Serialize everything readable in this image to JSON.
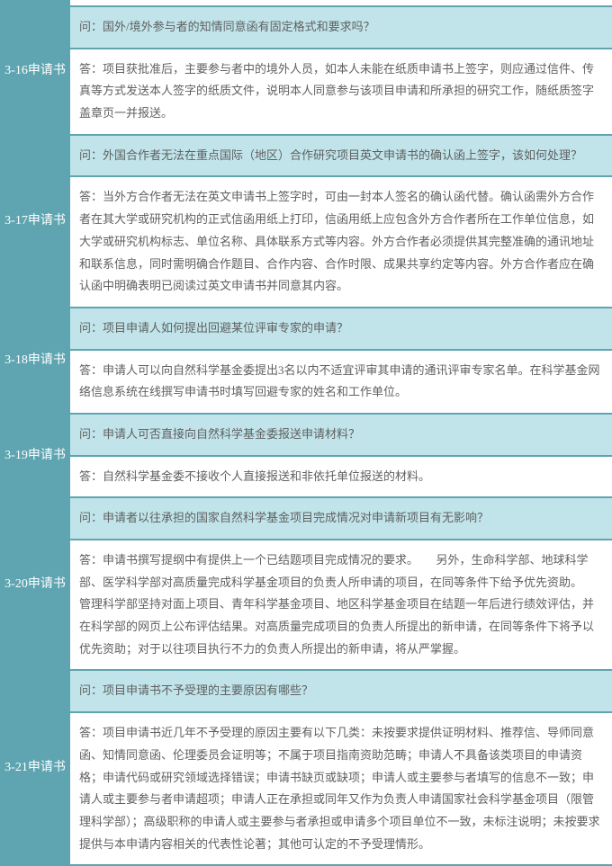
{
  "items": [
    {
      "label": "3-16申请书",
      "q": "问：国外/境外参与者的知情同意函有固定格式和要求吗？",
      "a": "答：项目获批准后，主要参与者中的境外人员，如本人未能在纸质申请书上签字，则应通过信件、传真等方式发送本人签字的纸质文件，说明本人同意参与该项目申请和所承担的研究工作，随纸质签字盖章页一并报送。"
    },
    {
      "label": "3-17申请书",
      "q": "问：外国合作者无法在重点国际（地区）合作研究项目英文申请书的确认函上签字，该如何处理？",
      "a": "答：当外方合作者无法在英文申请书上签字时，可由一封本人签名的确认函代替。确认函需外方合作者在其大学或研究机构的正式信函用纸上打印，信函用纸上应包含外方合作者所在工作单位信息，如大学或研究机构标志、单位名称、具体联系方式等内容。外方合作者必须提供其完整准确的通讯地址和联系信息，同时需明确合作题目、合作内容、合作时限、成果共享约定等内容。外方合作者应在确认函中明确表明已阅读过英文申请书并同意其内容。"
    },
    {
      "label": "3-18申请书",
      "q": "问：项目申请人如何提出回避某位评审专家的申请？",
      "a": "答：申请人可以向自然科学基金委提出3名以内不适宜评审其申请的通讯评审专家名单。在科学基金网络信息系统在线撰写申请书时填写回避专家的姓名和工作单位。"
    },
    {
      "label": "3-19申请书",
      "q": "问：申请人可否直接向自然科学基金委报送申请材料？",
      "a": "答：自然科学基金委不接收个人直接报送和非依托单位报送的材料。"
    },
    {
      "label": "3-20申请书",
      "q": "问：申请者以往承担的国家自然科学基金项目完成情况对申请新项目有无影响？",
      "a": "答：申请书撰写提纲中有提供上一个已结题项目完成情况的要求。　　另外，生命科学部、地球科学部、医学科学部对高质量完成科学基金项目的负责人所申请的项目，在同等条件下给予优先资助。　　管理科学部坚持对面上项目、青年科学基金项目、地区科学基金项目在结题一年后进行绩效评估，并在科学部的网页上公布评估结果。对高质量完成项目的负责人所提出的新申请，在同等条件下将予以优先资助；对于以往项目执行不力的负责人所提出的新申请，将从严掌握。"
    },
    {
      "label": "3-21申请书",
      "q": "问：项目申请书不予受理的主要原因有哪些？",
      "a": "答：项目申请书近几年不予受理的原因主要有以下几类：未按要求提供证明材料、推荐信、导师同意函、知情同意函、伦理委员会证明等；不属于项目指南资助范畴；申请人不具备该类项目的申请资格；申请代码或研究领域选择错误；申请书缺页或缺项；申请人或主要参与者填写的信息不一致；申请人或主要参与者申请超项；申请人正在承担或同年又作为负责人申请国家社会科学基金项目（限管理科学部）；高级职称的申请人或主要参与者承担或申请多个项目单位不一致，未标注说明；未按要求提供与本申请内容相关的代表性论著；其他可认定的不予受理情形。"
    }
  ]
}
